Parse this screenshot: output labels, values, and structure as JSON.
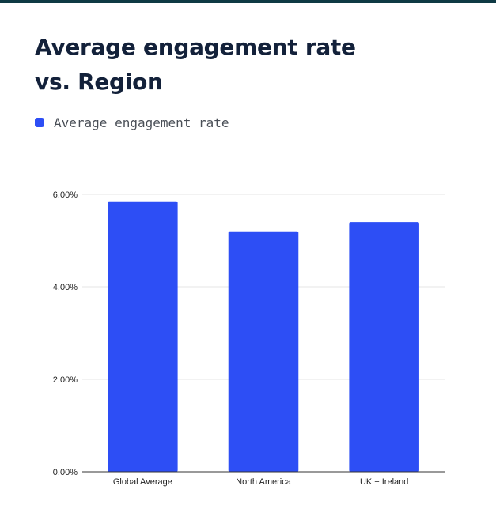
{
  "chart_data": {
    "type": "bar",
    "title_lines": [
      "Average engagement rate",
      "vs. Region"
    ],
    "legend_label": "Average engagement rate",
    "series_color": "#2d4ef5",
    "categories": [
      "Global Average",
      "North America",
      "UK + Ireland"
    ],
    "values": [
      5.85,
      5.2,
      5.4
    ],
    "ylim": [
      0,
      6
    ],
    "yticks": [
      0,
      2,
      4,
      6
    ],
    "ytick_labels": [
      "0.00%",
      "2.00%",
      "4.00%",
      "6.00%"
    ],
    "xlabel": "",
    "ylabel": "",
    "grid": true,
    "legend_position": "top-left"
  }
}
